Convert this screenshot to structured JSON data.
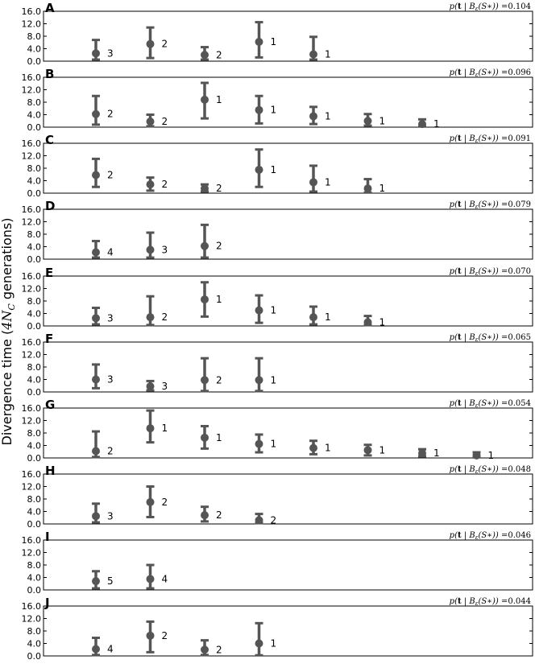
{
  "chart_data": {
    "type": "scatter",
    "ylabel": "Divergence time (4N_C generations)",
    "ylim": [
      0,
      16
    ],
    "yticks": [
      "0.0",
      "4.0",
      "8.0",
      "12.0",
      "16.0"
    ],
    "grid": false,
    "marker_color": "#555555",
    "panels": [
      {
        "label": "A",
        "annotation": "p(t | B_ε(S*)) = 0.104",
        "points": [
          {
            "x": 1,
            "y": 2.5,
            "lo": 0.5,
            "hi": 6.8,
            "count": "3"
          },
          {
            "x": 2,
            "y": 5.5,
            "lo": 1.0,
            "hi": 10.8,
            "count": "2"
          },
          {
            "x": 3,
            "y": 2.0,
            "lo": 0.5,
            "hi": 4.5,
            "count": "2"
          },
          {
            "x": 4,
            "y": 6.2,
            "lo": 1.2,
            "hi": 12.5,
            "count": "1"
          },
          {
            "x": 5,
            "y": 2.2,
            "lo": 0.5,
            "hi": 7.8,
            "count": "1"
          }
        ]
      },
      {
        "label": "B",
        "annotation": "p(t | B_ε(S*)) = 0.096",
        "points": [
          {
            "x": 1,
            "y": 4.2,
            "lo": 0.8,
            "hi": 10.0,
            "count": "2"
          },
          {
            "x": 2,
            "y": 1.8,
            "lo": 0.3,
            "hi": 4.0,
            "count": "2"
          },
          {
            "x": 3,
            "y": 8.8,
            "lo": 2.8,
            "hi": 14.2,
            "count": "1"
          },
          {
            "x": 4,
            "y": 5.5,
            "lo": 1.2,
            "hi": 10.0,
            "count": "1"
          },
          {
            "x": 5,
            "y": 3.5,
            "lo": 1.0,
            "hi": 6.5,
            "count": "1"
          },
          {
            "x": 6,
            "y": 2.0,
            "lo": 0.5,
            "hi": 4.2,
            "count": "1"
          },
          {
            "x": 7,
            "y": 1.0,
            "lo": 0.2,
            "hi": 2.5,
            "count": "1"
          }
        ]
      },
      {
        "label": "C",
        "annotation": "p(t | B_ε(S*)) = 0.091",
        "points": [
          {
            "x": 1,
            "y": 5.8,
            "lo": 2.0,
            "hi": 11.0,
            "count": "2"
          },
          {
            "x": 2,
            "y": 2.8,
            "lo": 0.8,
            "hi": 5.0,
            "count": "2"
          },
          {
            "x": 3,
            "y": 1.5,
            "lo": 0.5,
            "hi": 2.8,
            "count": "2"
          },
          {
            "x": 4,
            "y": 7.5,
            "lo": 2.0,
            "hi": 14.0,
            "count": "1"
          },
          {
            "x": 5,
            "y": 3.5,
            "lo": 0.5,
            "hi": 8.8,
            "count": "1"
          },
          {
            "x": 6,
            "y": 1.5,
            "lo": 0.2,
            "hi": 4.5,
            "count": "1"
          }
        ]
      },
      {
        "label": "D",
        "annotation": "p(t | B_ε(S*)) = 0.079",
        "points": [
          {
            "x": 1,
            "y": 2.2,
            "lo": 0.5,
            "hi": 5.8,
            "count": "4"
          },
          {
            "x": 2,
            "y": 3.0,
            "lo": 0.5,
            "hi": 8.5,
            "count": "3"
          },
          {
            "x": 3,
            "y": 4.2,
            "lo": 0.5,
            "hi": 11.0,
            "count": "2"
          }
        ]
      },
      {
        "label": "E",
        "annotation": "p(t | B_ε(S*)) = 0.070",
        "points": [
          {
            "x": 1,
            "y": 2.5,
            "lo": 0.5,
            "hi": 5.8,
            "count": "3"
          },
          {
            "x": 2,
            "y": 2.8,
            "lo": 0.3,
            "hi": 9.5,
            "count": "2"
          },
          {
            "x": 3,
            "y": 8.5,
            "lo": 3.0,
            "hi": 14.0,
            "count": "1"
          },
          {
            "x": 4,
            "y": 5.0,
            "lo": 1.0,
            "hi": 9.8,
            "count": "1"
          },
          {
            "x": 5,
            "y": 2.8,
            "lo": 0.5,
            "hi": 6.2,
            "count": "1"
          },
          {
            "x": 6,
            "y": 1.2,
            "lo": 0.3,
            "hi": 3.2,
            "count": "1"
          }
        ]
      },
      {
        "label": "F",
        "annotation": "p(t | B_ε(S*)) = 0.065",
        "points": [
          {
            "x": 1,
            "y": 4.0,
            "lo": 1.2,
            "hi": 8.8,
            "count": "3"
          },
          {
            "x": 2,
            "y": 1.8,
            "lo": 0.5,
            "hi": 3.5,
            "count": "3"
          },
          {
            "x": 3,
            "y": 3.8,
            "lo": 0.3,
            "hi": 10.8,
            "count": "2"
          },
          {
            "x": 4,
            "y": 3.8,
            "lo": 0.3,
            "hi": 10.8,
            "count": "1"
          }
        ]
      },
      {
        "label": "G",
        "annotation": "p(t | B_ε(S*)) = 0.054",
        "points": [
          {
            "x": 1,
            "y": 2.2,
            "lo": 0.3,
            "hi": 8.5,
            "count": "2"
          },
          {
            "x": 2,
            "y": 9.5,
            "lo": 5.0,
            "hi": 15.2,
            "count": "1"
          },
          {
            "x": 3,
            "y": 6.5,
            "lo": 3.0,
            "hi": 10.2,
            "count": "1"
          },
          {
            "x": 4,
            "y": 4.5,
            "lo": 1.8,
            "hi": 7.5,
            "count": "1"
          },
          {
            "x": 5,
            "y": 3.2,
            "lo": 1.2,
            "hi": 5.5,
            "count": "1"
          },
          {
            "x": 6,
            "y": 2.5,
            "lo": 0.8,
            "hi": 4.2,
            "count": "1"
          },
          {
            "x": 7,
            "y": 1.5,
            "lo": 0.5,
            "hi": 2.8,
            "count": "1"
          },
          {
            "x": 8,
            "y": 0.8,
            "lo": 0.2,
            "hi": 1.8,
            "count": "1"
          }
        ]
      },
      {
        "label": "H",
        "annotation": "p(t | B_ε(S*)) = 0.048",
        "points": [
          {
            "x": 1,
            "y": 2.5,
            "lo": 0.5,
            "hi": 6.5,
            "count": "3"
          },
          {
            "x": 2,
            "y": 7.0,
            "lo": 2.2,
            "hi": 12.0,
            "count": "2"
          },
          {
            "x": 3,
            "y": 2.8,
            "lo": 0.8,
            "hi": 5.5,
            "count": "2"
          },
          {
            "x": 4,
            "y": 1.2,
            "lo": 0.3,
            "hi": 3.2,
            "count": "2"
          }
        ]
      },
      {
        "label": "I",
        "annotation": "p(t | B_ε(S*)) = 0.046",
        "points": [
          {
            "x": 1,
            "y": 2.8,
            "lo": 0.5,
            "hi": 6.0,
            "count": "5"
          },
          {
            "x": 2,
            "y": 3.5,
            "lo": 0.5,
            "hi": 8.0,
            "count": "4"
          }
        ]
      },
      {
        "label": "J",
        "annotation": "p(t | B_ε(S*)) = 0.044",
        "points": [
          {
            "x": 1,
            "y": 2.2,
            "lo": 0.3,
            "hi": 5.8,
            "count": "4"
          },
          {
            "x": 2,
            "y": 6.5,
            "lo": 1.2,
            "hi": 11.0,
            "count": "2"
          },
          {
            "x": 3,
            "y": 2.0,
            "lo": 0.3,
            "hi": 5.0,
            "count": "2"
          },
          {
            "x": 4,
            "y": 4.0,
            "lo": 0.2,
            "hi": 10.5,
            "count": "1"
          }
        ]
      }
    ]
  }
}
